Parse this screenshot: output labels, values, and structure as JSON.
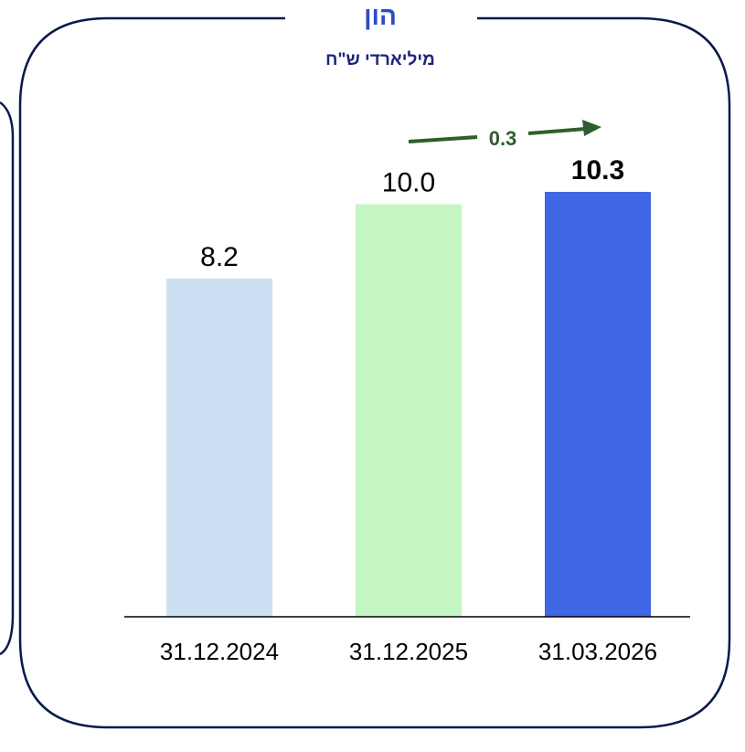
{
  "title": "הון",
  "subtitle": "מיליארדי ש\"ח",
  "colors": {
    "frame": "#0a1a4a",
    "title": "#2f4bc4",
    "subtitle": "#1a237e",
    "arrow": "#2e5e2e",
    "axis": "#000000"
  },
  "chart_data": {
    "type": "bar",
    "categories": [
      "31.12.2024",
      "31.12.2025",
      "31.03.2026"
    ],
    "values": [
      8.2,
      10.0,
      10.3
    ],
    "value_labels": [
      "8.2",
      "10.0",
      "10.3"
    ],
    "bar_colors": [
      "#cde0f3",
      "#c4f6c4",
      "#3f67e4"
    ],
    "ylim": [
      0,
      10.3
    ],
    "grid": false,
    "annotation": {
      "text": "0.3",
      "from": "31.12.2025",
      "to": "31.03.2026"
    }
  }
}
